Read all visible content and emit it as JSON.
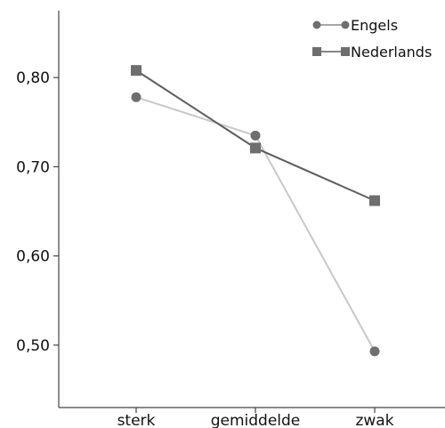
{
  "chart_data": {
    "type": "line",
    "categories": [
      "sterk",
      "gemiddelde",
      "zwak"
    ],
    "series": [
      {
        "name": "Engels",
        "values": [
          0.778,
          0.735,
          0.493
        ],
        "marker": "circle",
        "line_color": "#c8c8c8",
        "marker_color": "#6e6e6e"
      },
      {
        "name": "Nederlands",
        "values": [
          0.808,
          0.721,
          0.662
        ],
        "marker": "square",
        "line_color": "#5e5e5e",
        "marker_color": "#6e6e6e"
      }
    ],
    "yticks": [
      "0,50",
      "0,60",
      "0,70",
      "0,80"
    ],
    "ytick_values": [
      0.5,
      0.6,
      0.7,
      0.8
    ],
    "ylim": [
      0.43,
      0.875
    ],
    "legend_position": "top-right",
    "grid": false
  }
}
